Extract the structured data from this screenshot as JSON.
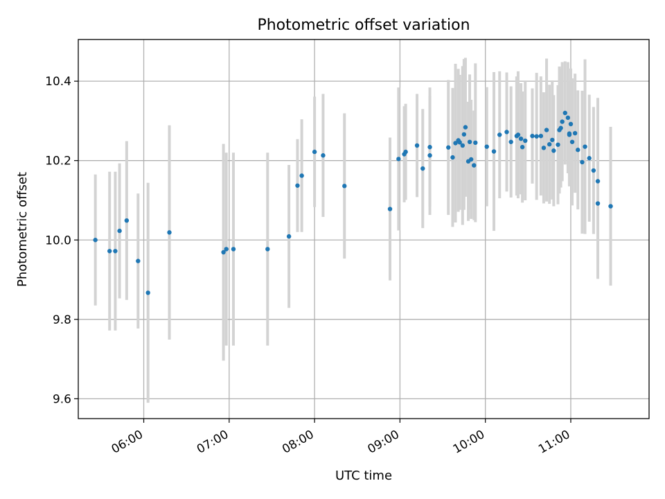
{
  "chart_data": {
    "type": "scatter",
    "title": "Photometric offset variation",
    "xlabel": "UTC time",
    "ylabel": "Photometric offset",
    "grid": true,
    "xlim": [
      "05:14",
      "11:55"
    ],
    "ylim": [
      9.55,
      10.505
    ],
    "x_ticks": [
      "06:00",
      "07:00",
      "08:00",
      "09:00",
      "10:00",
      "11:00"
    ],
    "y_ticks": [
      9.6,
      9.8,
      10.0,
      10.2,
      10.4
    ],
    "colors": {
      "points": "#1f77b4",
      "errorbars": "#d3d3d3",
      "grid": "#b0b0b0"
    },
    "series": [
      {
        "x": [
          "05:26",
          "05:36",
          "05:40",
          "05:43",
          "05:48",
          "05:56",
          "06:03",
          "06:18",
          "06:56",
          "06:58",
          "07:03",
          "07:27",
          "07:42",
          "07:48",
          "07:51",
          "08:00",
          "08:06",
          "08:21",
          "08:53",
          "08:59",
          "09:03",
          "09:04",
          "09:12",
          "09:16",
          "09:21",
          "09:21",
          "09:34",
          "09:37",
          "09:39",
          "09:41",
          "09:42",
          "09:44",
          "09:45",
          "09:46",
          "09:48",
          "09:49",
          "09:50",
          "09:52",
          "09:53",
          "10:01",
          "10:06",
          "10:10",
          "10:15",
          "10:18",
          "10:22",
          "10:23",
          "10:25",
          "10:26",
          "10:28",
          "10:33",
          "10:36",
          "10:39",
          "10:41",
          "10:43",
          "10:45",
          "10:47",
          "10:48",
          "10:51",
          "10:52",
          "10:53",
          "10:54",
          "10:56",
          "10:58",
          "10:59",
          "10:59",
          "11:00",
          "11:01",
          "11:03",
          "11:05",
          "11:08",
          "11:10",
          "11:13",
          "11:16",
          "11:19",
          "11:19",
          "11:28"
        ],
        "y": [
          10.0,
          9.972,
          9.972,
          10.023,
          10.049,
          9.947,
          9.867,
          10.019,
          9.969,
          9.977,
          9.977,
          9.977,
          10.009,
          10.137,
          10.162,
          10.222,
          10.213,
          10.136,
          10.078,
          10.204,
          10.216,
          10.222,
          10.238,
          10.18,
          10.213,
          10.234,
          10.233,
          10.208,
          10.244,
          10.251,
          10.246,
          10.238,
          10.266,
          10.284,
          10.198,
          10.247,
          10.203,
          10.188,
          10.245,
          10.235,
          10.223,
          10.265,
          10.272,
          10.247,
          10.262,
          10.265,
          10.255,
          10.234,
          10.25,
          10.262,
          10.261,
          10.262,
          10.232,
          10.277,
          10.241,
          10.252,
          10.225,
          10.24,
          10.277,
          10.282,
          10.298,
          10.32,
          10.308,
          10.265,
          10.268,
          10.292,
          10.247,
          10.269,
          10.227,
          10.196,
          10.235,
          10.206,
          10.175,
          10.148,
          10.092,
          10.085
        ],
        "error": [
          0.165,
          0.2,
          0.2,
          0.17,
          0.2,
          0.17,
          0.277,
          0.27,
          0.273,
          0.243,
          0.243,
          0.243,
          0.18,
          0.117,
          0.142,
          0.139,
          0.155,
          0.183,
          0.18,
          0.18,
          0.121,
          0.121,
          0.13,
          0.15,
          0.15,
          0.15,
          0.17,
          0.175,
          0.2,
          0.18,
          0.17,
          0.2,
          0.19,
          0.175,
          0.15,
          0.17,
          0.15,
          0.138,
          0.2,
          0.15,
          0.2,
          0.16,
          0.15,
          0.14,
          0.15,
          0.16,
          0.14,
          0.14,
          0.15,
          0.12,
          0.16,
          0.15,
          0.14,
          0.18,
          0.15,
          0.15,
          0.14,
          0.15,
          0.16,
          0.15,
          0.15,
          0.13,
          0.14,
          0.13,
          0.13,
          0.14,
          0.16,
          0.15,
          0.15,
          0.18,
          0.22,
          0.16,
          0.16,
          0.21,
          0.19,
          0.2
        ]
      }
    ]
  }
}
